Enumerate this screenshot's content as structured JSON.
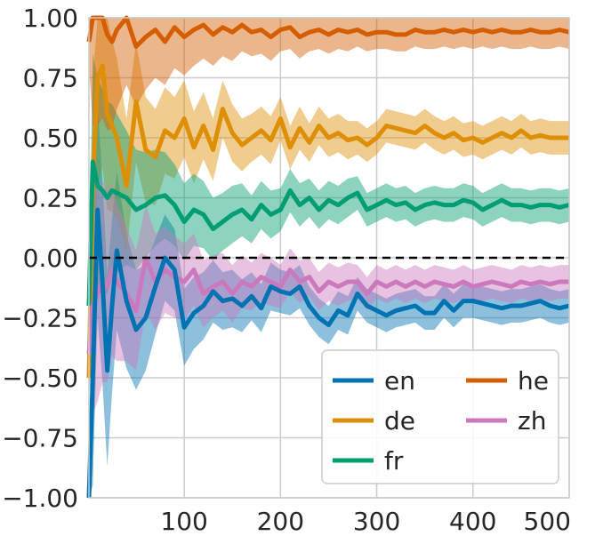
{
  "chart_data": {
    "type": "line",
    "title": "",
    "xlabel": "",
    "ylabel": "",
    "xlim": [
      1,
      500
    ],
    "ylim": [
      -1.0,
      1.0
    ],
    "grid": true,
    "legend_position": "bottom-right",
    "legend_columns": 2,
    "reference_line": {
      "y": 0.0,
      "style": "dashed",
      "color": "#000000"
    },
    "x_ticks": [
      100,
      200,
      300,
      400,
      500
    ],
    "x_tick_labels": [
      "100",
      "200",
      "300",
      "400",
      "500"
    ],
    "y_ticks": [
      -1.0,
      -0.75,
      -0.5,
      -0.25,
      0.0,
      0.25,
      0.5,
      0.75,
      1.0
    ],
    "y_tick_labels": [
      "−1.00",
      "−0.75",
      "−0.50",
      "−0.25",
      "0.00",
      "0.25",
      "0.50",
      "0.75",
      "1.00"
    ],
    "x": [
      1,
      5,
      10,
      15,
      20,
      25,
      30,
      40,
      50,
      60,
      70,
      80,
      90,
      100,
      110,
      120,
      130,
      140,
      150,
      160,
      170,
      180,
      190,
      200,
      210,
      220,
      230,
      240,
      250,
      260,
      270,
      280,
      290,
      300,
      310,
      320,
      330,
      340,
      350,
      360,
      370,
      380,
      390,
      400,
      410,
      420,
      430,
      440,
      450,
      460,
      470,
      480,
      490,
      500
    ],
    "band_halfwidth": [
      0.1,
      0.45,
      0.45,
      0.42,
      0.4,
      0.36,
      0.33,
      0.28,
      0.25,
      0.22,
      0.2,
      0.18,
      0.17,
      0.16,
      0.15,
      0.14,
      0.13,
      0.12,
      0.12,
      0.11,
      0.1,
      0.1,
      0.1,
      0.09,
      0.09,
      0.09,
      0.08,
      0.08,
      0.08,
      0.08,
      0.08,
      0.07,
      0.07,
      0.07,
      0.07,
      0.07,
      0.07,
      0.07,
      0.07,
      0.07,
      0.07,
      0.07,
      0.07,
      0.07,
      0.07,
      0.07,
      0.07,
      0.07,
      0.07,
      0.07,
      0.07,
      0.07,
      0.07,
      0.07
    ],
    "series": [
      {
        "name": "en",
        "color": "#0173b2",
        "values": [
          -1.0,
          -0.5,
          0.2,
          -0.1,
          -0.47,
          -0.2,
          0.03,
          -0.18,
          -0.3,
          -0.25,
          -0.12,
          0.0,
          -0.05,
          -0.29,
          -0.23,
          -0.2,
          -0.14,
          -0.18,
          -0.17,
          -0.2,
          -0.16,
          -0.21,
          -0.12,
          -0.14,
          -0.15,
          -0.12,
          -0.2,
          -0.25,
          -0.28,
          -0.22,
          -0.24,
          -0.15,
          -0.2,
          -0.22,
          -0.24,
          -0.22,
          -0.21,
          -0.2,
          -0.23,
          -0.23,
          -0.18,
          -0.22,
          -0.18,
          -0.18,
          -0.19,
          -0.2,
          -0.21,
          -0.2,
          -0.2,
          -0.19,
          -0.18,
          -0.2,
          -0.21,
          -0.2
        ]
      },
      {
        "name": "de",
        "color": "#de8f05",
        "values": [
          -0.5,
          0.3,
          0.75,
          0.8,
          0.6,
          0.55,
          0.5,
          0.3,
          0.65,
          0.45,
          0.42,
          0.53,
          0.5,
          0.58,
          0.46,
          0.55,
          0.45,
          0.62,
          0.52,
          0.47,
          0.5,
          0.53,
          0.49,
          0.58,
          0.46,
          0.54,
          0.48,
          0.55,
          0.5,
          0.52,
          0.49,
          0.5,
          0.47,
          0.5,
          0.55,
          0.54,
          0.53,
          0.52,
          0.55,
          0.52,
          0.5,
          0.52,
          0.49,
          0.5,
          0.48,
          0.5,
          0.52,
          0.5,
          0.53,
          0.5,
          0.51,
          0.5,
          0.5,
          0.5
        ]
      },
      {
        "name": "fr",
        "color": "#029e73",
        "values": [
          -0.2,
          0.4,
          0.3,
          0.28,
          0.25,
          0.28,
          0.27,
          0.25,
          0.2,
          0.22,
          0.25,
          0.26,
          0.22,
          0.15,
          0.2,
          0.18,
          0.12,
          0.15,
          0.18,
          0.2,
          0.16,
          0.22,
          0.18,
          0.2,
          0.28,
          0.22,
          0.25,
          0.2,
          0.24,
          0.22,
          0.25,
          0.27,
          0.2,
          0.22,
          0.24,
          0.22,
          0.23,
          0.2,
          0.22,
          0.23,
          0.22,
          0.22,
          0.24,
          0.23,
          0.2,
          0.22,
          0.24,
          0.22,
          0.22,
          0.21,
          0.22,
          0.22,
          0.21,
          0.22
        ]
      },
      {
        "name": "he",
        "color": "#d55e00",
        "values": [
          0.9,
          1.0,
          1.0,
          1.0,
          0.93,
          0.9,
          0.95,
          1.0,
          0.88,
          0.92,
          0.95,
          0.9,
          0.96,
          0.92,
          0.95,
          0.97,
          0.93,
          0.96,
          0.94,
          0.97,
          0.94,
          0.95,
          0.92,
          0.95,
          0.96,
          0.92,
          0.94,
          0.95,
          0.93,
          0.95,
          0.94,
          0.95,
          0.93,
          0.94,
          0.94,
          0.93,
          0.93,
          0.95,
          0.94,
          0.94,
          0.95,
          0.94,
          0.95,
          0.94,
          0.95,
          0.94,
          0.95,
          0.94,
          0.94,
          0.95,
          0.94,
          0.94,
          0.95,
          0.94
        ]
      },
      {
        "name": "zh",
        "color": "#cc78bc",
        "values": [
          -0.4,
          -0.2,
          -0.15,
          -0.1,
          -0.12,
          -0.05,
          -0.1,
          -0.15,
          -0.22,
          0.0,
          -0.1,
          -0.05,
          -0.08,
          -0.1,
          -0.05,
          -0.15,
          -0.12,
          -0.1,
          -0.15,
          -0.1,
          -0.12,
          -0.08,
          -0.1,
          -0.12,
          -0.05,
          -0.1,
          -0.08,
          -0.14,
          -0.1,
          -0.12,
          -0.1,
          -0.1,
          -0.15,
          -0.1,
          -0.12,
          -0.1,
          -0.12,
          -0.1,
          -0.12,
          -0.1,
          -0.11,
          -0.12,
          -0.1,
          -0.12,
          -0.11,
          -0.1,
          -0.11,
          -0.12,
          -0.1,
          -0.11,
          -0.1,
          -0.11,
          -0.1,
          -0.1
        ]
      }
    ],
    "legend": {
      "entries": [
        "en",
        "de",
        "fr",
        "he",
        "zh"
      ]
    }
  }
}
